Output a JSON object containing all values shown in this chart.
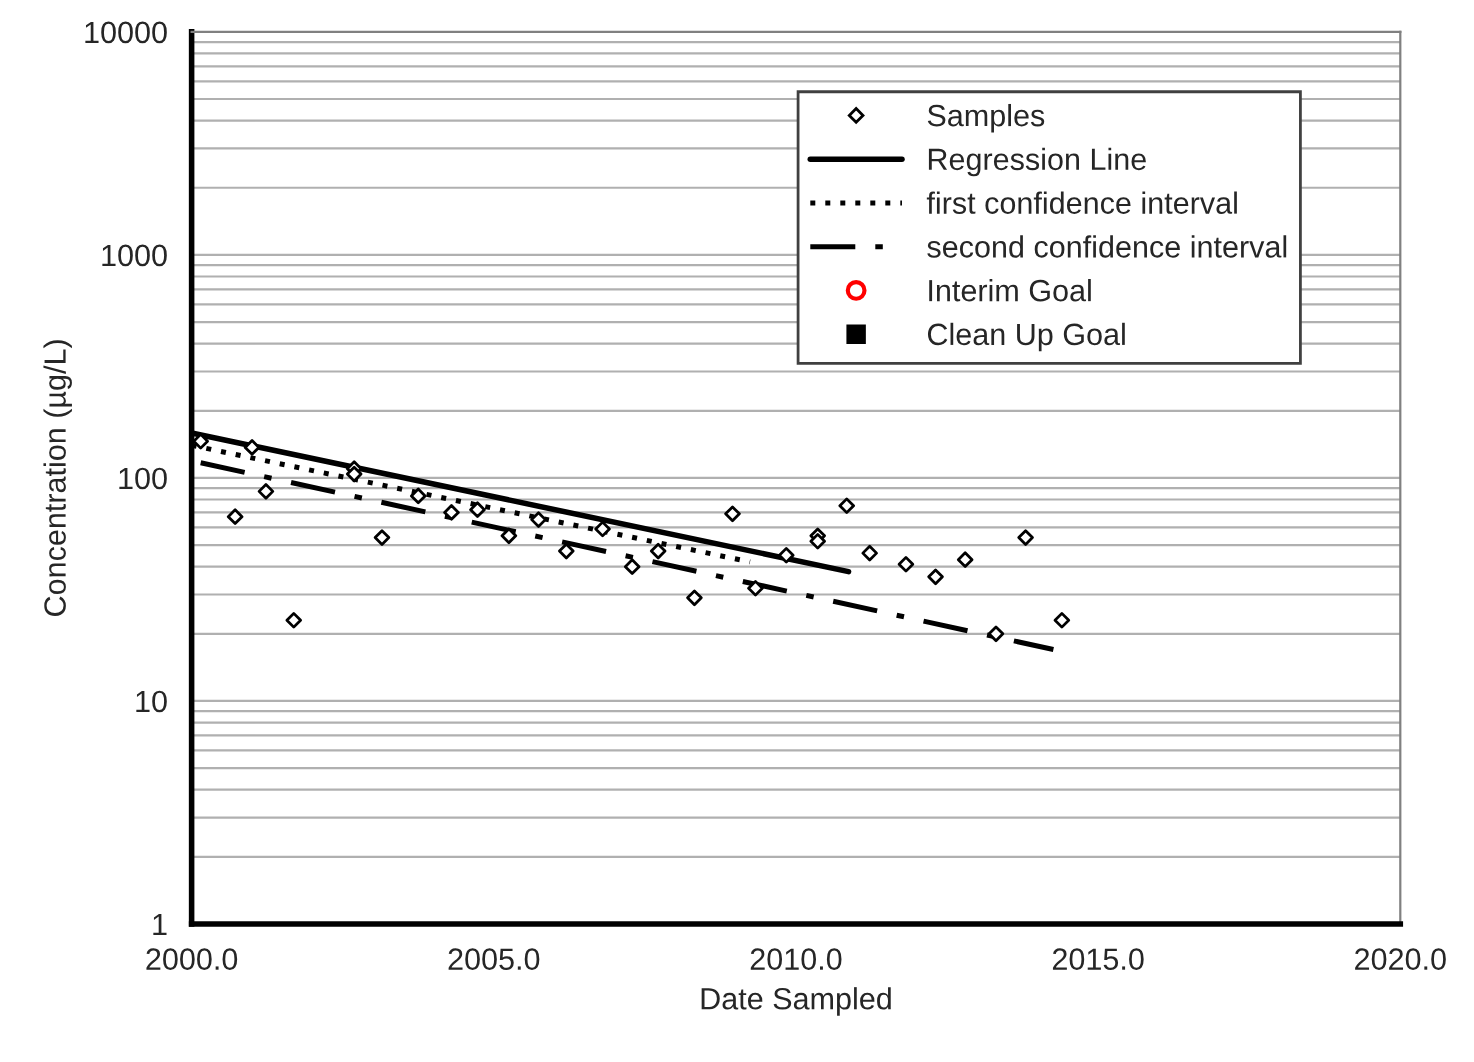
{
  "chart_data": {
    "type": "scatter",
    "xlabel": "Date Sampled",
    "ylabel": "Concentration (µg/L)",
    "log": "y",
    "xlim": [
      2000,
      2020
    ],
    "xticks": [
      {
        "value": 2000,
        "label": "2000.0"
      },
      {
        "value": 2005,
        "label": "2005.0"
      },
      {
        "value": 2010,
        "label": "2010.0"
      },
      {
        "value": 2015,
        "label": "2015.0"
      },
      {
        "value": 2020,
        "label": "2020.0"
      }
    ],
    "ylim": [
      1,
      10000
    ],
    "yticks": [
      1,
      10,
      100,
      1000,
      10000
    ],
    "grid": "y",
    "legend": "top right",
    "series": [
      {
        "name": "Samples",
        "marker": "diamond",
        "color": "#000000",
        "x": [
          2000.15,
          2000.72,
          2001.0,
          2001.23,
          2001.69,
          2002.69,
          2002.69,
          2003.15,
          2003.75,
          2004.3,
          2004.73,
          2005.25,
          2005.74,
          2006.2,
          2006.8,
          2007.29,
          2007.72,
          2008.32,
          2008.95,
          2009.33,
          2009.84,
          2010.36,
          2010.36,
          2010.84,
          2011.22,
          2011.82,
          2012.31,
          2012.8,
          2013.31,
          2013.8,
          2014.4
        ],
        "values": [
          146,
          67,
          137,
          87,
          23,
          110,
          104,
          54,
          83,
          70,
          72,
          55,
          65,
          47,
          59,
          40,
          47,
          29,
          69,
          32,
          45,
          55,
          52,
          75,
          46,
          41,
          36,
          43,
          20,
          54,
          23
        ]
      },
      {
        "name": "Regression Line",
        "type": "line",
        "line_style": "solid",
        "color": "#000000",
        "x": [
          2000.0,
          2010.87
        ],
        "values": [
          159,
          38
        ]
      },
      {
        "name": "first confidence interval",
        "type": "line",
        "line_style": "dotted",
        "color": "#000000",
        "x": [
          2000.0,
          2009.24
        ],
        "values": [
          140,
          42
        ]
      },
      {
        "name": "second confidence interval",
        "type": "line",
        "line_style": "dashdot",
        "color": "#000000",
        "x": [
          2000.15,
          2014.26
        ],
        "values": [
          117,
          17
        ]
      },
      {
        "name": "Interim Goal",
        "marker": "circle",
        "color": "#ff0000"
      },
      {
        "name": "Clean Up Goal",
        "marker": "square",
        "color": "#000000"
      }
    ]
  }
}
